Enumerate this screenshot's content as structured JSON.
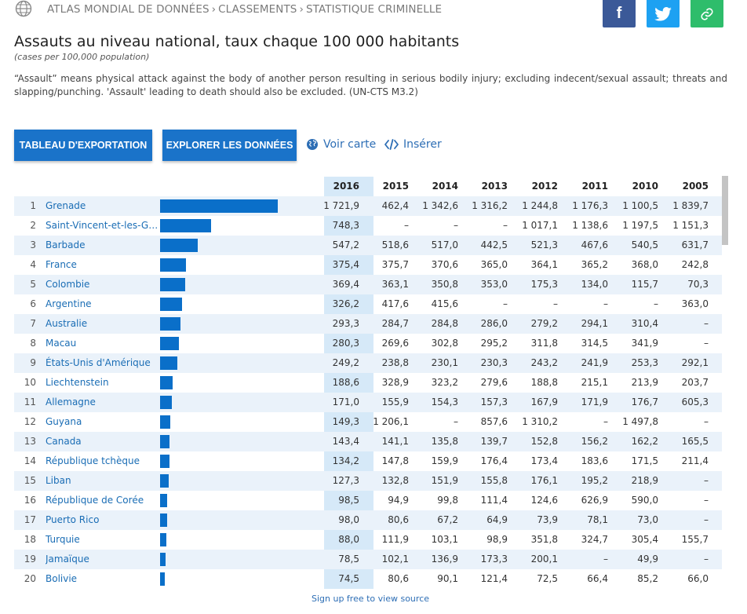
{
  "breadcrumb": [
    "ATLAS MONDIAL DE DONNÉES",
    "CLASSEMENTS",
    "STATISTIQUE CRIMINELLE"
  ],
  "breadcrumb_separator": "›",
  "share": {
    "facebook_label": "f"
  },
  "title": "Assauts au niveau national, taux chaque 100 000 habitants",
  "subtitle": "(cases per 100,000 population)",
  "description": "“Assault” means physical attack against the body of another person resulting in serious bodily injury; excluding indecent/sexual assault; threats and slapping/punching. 'Assault' leading to death should also be excluded. (UN-CTS M3.2)",
  "buttons": {
    "export": "TABLEAU D'EXPORTATION",
    "explore": "EXPLORER LES DONNÉES"
  },
  "links": {
    "map": "Voir carte",
    "embed": "Insérer"
  },
  "colors": {
    "accent": "#1a73c9",
    "bar": "#0a6fc9",
    "highlight": "#d6e9f8",
    "row_alt": "#eaf2fa",
    "link": "#2d6eb5"
  },
  "bar_max_value": 1721.9,
  "table": {
    "years": [
      "2016",
      "2015",
      "2014",
      "2013",
      "2012",
      "2011",
      "2010",
      "2005"
    ],
    "rows": [
      {
        "rank": "1",
        "country": "Grenade",
        "value": 1721.9,
        "values": [
          "1 721,9",
          "462,4",
          "1 342,6",
          "1 316,2",
          "1 244,8",
          "1 176,3",
          "1 100,5",
          "1 839,7"
        ]
      },
      {
        "rank": "2",
        "country": "Saint-Vincent-et-les-Gre…",
        "value": 748.3,
        "values": [
          "748,3",
          "–",
          "–",
          "–",
          "1 017,1",
          "1 138,6",
          "1 197,5",
          "1 151,3"
        ]
      },
      {
        "rank": "3",
        "country": "Barbade",
        "value": 547.2,
        "values": [
          "547,2",
          "518,6",
          "517,0",
          "442,5",
          "521,3",
          "467,6",
          "540,5",
          "631,7"
        ]
      },
      {
        "rank": "4",
        "country": "France",
        "value": 375.4,
        "values": [
          "375,4",
          "375,7",
          "370,6",
          "365,0",
          "364,1",
          "365,2",
          "368,0",
          "242,8"
        ]
      },
      {
        "rank": "5",
        "country": "Colombie",
        "value": 369.4,
        "values": [
          "369,4",
          "363,1",
          "350,8",
          "353,0",
          "175,3",
          "134,0",
          "115,7",
          "70,3"
        ]
      },
      {
        "rank": "6",
        "country": "Argentine",
        "value": 326.2,
        "values": [
          "326,2",
          "417,6",
          "415,6",
          "–",
          "–",
          "–",
          "–",
          "363,0"
        ]
      },
      {
        "rank": "7",
        "country": "Australie",
        "value": 293.3,
        "values": [
          "293,3",
          "284,7",
          "284,8",
          "286,0",
          "279,2",
          "294,1",
          "310,4",
          "–"
        ]
      },
      {
        "rank": "8",
        "country": "Macau",
        "value": 280.3,
        "values": [
          "280,3",
          "269,6",
          "302,8",
          "295,2",
          "311,8",
          "314,5",
          "341,9",
          "–"
        ]
      },
      {
        "rank": "9",
        "country": "États-Unis d'Amérique",
        "value": 249.2,
        "values": [
          "249,2",
          "238,8",
          "230,1",
          "230,3",
          "243,2",
          "241,9",
          "253,3",
          "292,1"
        ]
      },
      {
        "rank": "10",
        "country": "Liechtenstein",
        "value": 188.6,
        "values": [
          "188,6",
          "328,9",
          "323,2",
          "279,6",
          "188,8",
          "215,1",
          "213,9",
          "203,7"
        ]
      },
      {
        "rank": "11",
        "country": "Allemagne",
        "value": 171.0,
        "values": [
          "171,0",
          "155,9",
          "154,3",
          "157,3",
          "167,9",
          "171,9",
          "176,7",
          "605,3"
        ]
      },
      {
        "rank": "12",
        "country": "Guyana",
        "value": 149.3,
        "values": [
          "149,3",
          "1 206,1",
          "–",
          "857,6",
          "1 310,2",
          "–",
          "1 497,8",
          "–"
        ]
      },
      {
        "rank": "13",
        "country": "Canada",
        "value": 143.4,
        "values": [
          "143,4",
          "141,1",
          "135,8",
          "139,7",
          "152,8",
          "156,2",
          "162,2",
          "165,5"
        ]
      },
      {
        "rank": "14",
        "country": "République tchèque",
        "value": 134.2,
        "values": [
          "134,2",
          "147,8",
          "159,9",
          "176,4",
          "173,4",
          "183,6",
          "171,5",
          "211,4"
        ]
      },
      {
        "rank": "15",
        "country": "Liban",
        "value": 127.3,
        "values": [
          "127,3",
          "132,8",
          "151,9",
          "155,8",
          "176,1",
          "195,2",
          "218,9",
          "–"
        ]
      },
      {
        "rank": "16",
        "country": "République de Corée",
        "value": 98.5,
        "values": [
          "98,5",
          "94,9",
          "99,8",
          "111,4",
          "124,6",
          "626,9",
          "590,0",
          "–"
        ]
      },
      {
        "rank": "17",
        "country": "Puerto Rico",
        "value": 98.0,
        "values": [
          "98,0",
          "80,6",
          "67,2",
          "64,9",
          "73,9",
          "78,1",
          "73,0",
          "–"
        ]
      },
      {
        "rank": "18",
        "country": "Turquie",
        "value": 88.0,
        "values": [
          "88,0",
          "111,9",
          "103,1",
          "98,9",
          "351,8",
          "324,7",
          "305,4",
          "155,7"
        ]
      },
      {
        "rank": "19",
        "country": "Jamaïque",
        "value": 78.5,
        "values": [
          "78,5",
          "102,1",
          "136,9",
          "173,3",
          "200,1",
          "–",
          "49,9",
          "–"
        ]
      },
      {
        "rank": "20",
        "country": "Bolivie",
        "value": 74.5,
        "values": [
          "74,5",
          "80,6",
          "90,1",
          "121,4",
          "72,5",
          "66,4",
          "85,2",
          "66,0"
        ]
      }
    ]
  },
  "signup_text": "Sign up free to view source"
}
